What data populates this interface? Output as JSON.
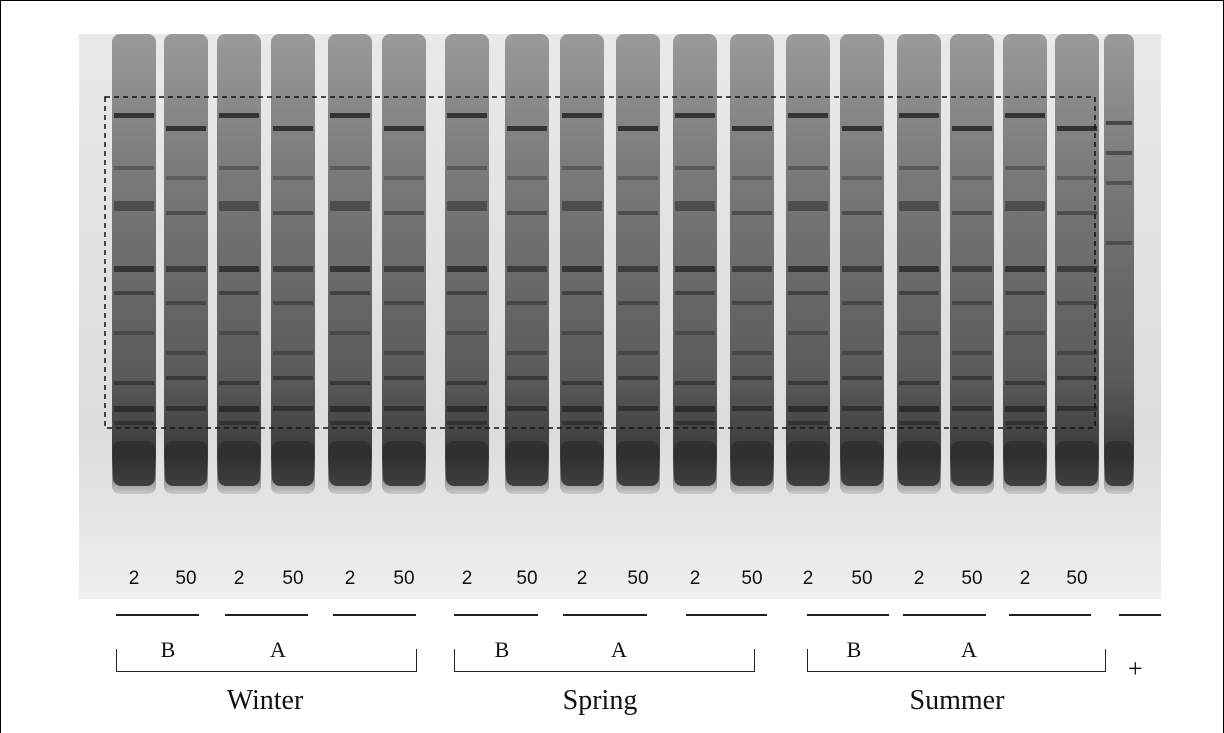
{
  "lane_labels": [
    "2",
    "50",
    "2",
    "50",
    "2",
    "50",
    "2",
    "50",
    "2",
    "50",
    "2",
    "50",
    "2",
    "50",
    "2",
    "50",
    "2",
    "50"
  ],
  "groups": {
    "winter_b": "B",
    "winter_a": "A",
    "spring_b": "B",
    "spring_a": "A",
    "summer_b": "B",
    "summer_a": "A"
  },
  "seasons": {
    "winter": "Winter",
    "spring": "Spring",
    "summer": "Summer"
  },
  "control": "+"
}
